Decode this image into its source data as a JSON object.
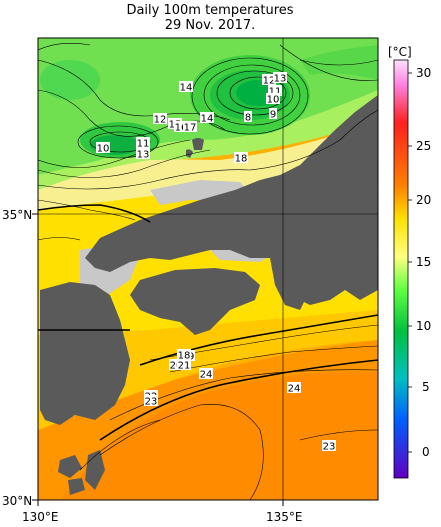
{
  "title": "Daily 100m temperatures",
  "date": "29 Nov. 2017.",
  "colorbar": {
    "unit": "[°C]",
    "ticks": [
      "30",
      "25",
      "20",
      "15",
      "10",
      "5",
      "0"
    ]
  },
  "axes": {
    "x_labels": [
      "130°E",
      "135°E"
    ],
    "y_labels": [
      "35°N",
      "30°N"
    ]
  },
  "contour_labels": [
    {
      "id": "c12a",
      "text": "12"
    },
    {
      "id": "c13a",
      "text": "13"
    },
    {
      "id": "c11a",
      "text": "11"
    },
    {
      "id": "c10a",
      "text": "10"
    },
    {
      "id": "c14a",
      "text": "14"
    },
    {
      "id": "c9a",
      "text": "9"
    },
    {
      "id": "c8a",
      "text": "8"
    },
    {
      "id": "c12b",
      "text": "12"
    },
    {
      "id": "c15a",
      "text": "15"
    },
    {
      "id": "c16a",
      "text": "16"
    },
    {
      "id": "c17a",
      "text": "17"
    },
    {
      "id": "c14b",
      "text": "14"
    },
    {
      "id": "c10b",
      "text": "10"
    },
    {
      "id": "c11b",
      "text": "11"
    },
    {
      "id": "c13b",
      "text": "13"
    },
    {
      "id": "c18a",
      "text": "18"
    },
    {
      "id": "c19a",
      "text": "19"
    },
    {
      "id": "c18b",
      "text": "18"
    },
    {
      "id": "c20a",
      "text": "20"
    },
    {
      "id": "c21a",
      "text": "21"
    },
    {
      "id": "c24a",
      "text": "24"
    },
    {
      "id": "c24b",
      "text": "24"
    },
    {
      "id": "c22a",
      "text": "22"
    },
    {
      "id": "c23a",
      "text": "23"
    },
    {
      "id": "c23b",
      "text": "23"
    }
  ],
  "colors": {
    "land": "#5a5a5a",
    "shelf": "#c8c8c8",
    "cb_30": "#ffd0ff",
    "cb_25": "#ff4000",
    "cb_20": "#ffe000",
    "cb_15": "#80ff40",
    "cb_10": "#00c060",
    "cb_5": "#00a0ff",
    "cb_0": "#6000c0"
  }
}
